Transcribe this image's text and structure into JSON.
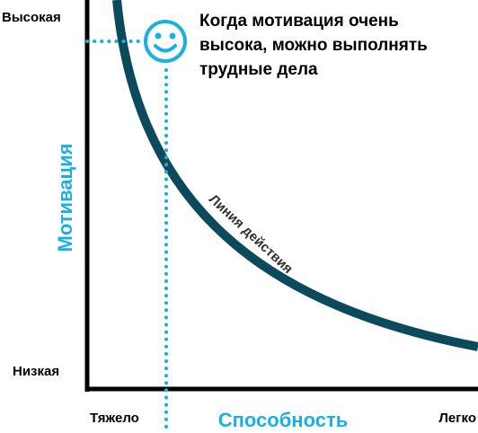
{
  "axes": {
    "y_high": "Высокая",
    "y_low": "Низкая",
    "y_title": "Мотивация",
    "x_hard": "Тяжело",
    "x_title": "Способность",
    "x_easy": "Легко"
  },
  "curve": {
    "label": "Линия действия"
  },
  "annotation": {
    "lines": [
      "Когда мотивация очень",
      "высока, можно выполнять",
      "трудные дела"
    ]
  }
}
